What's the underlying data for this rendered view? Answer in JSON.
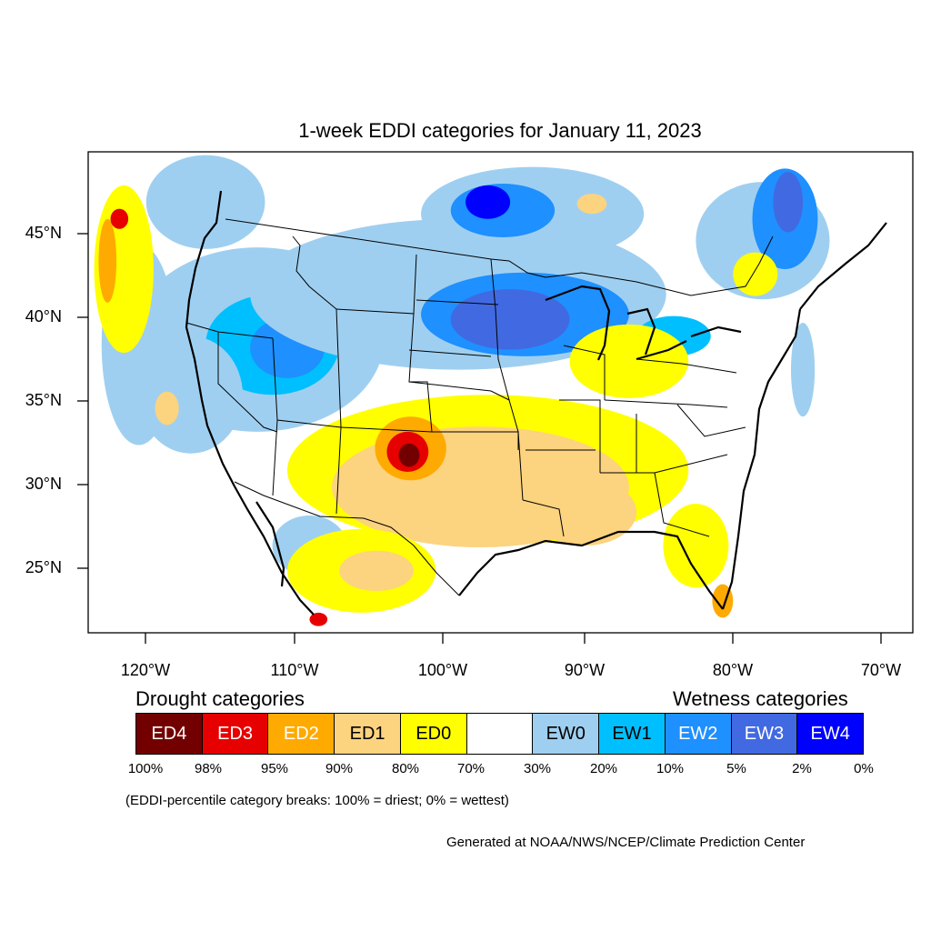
{
  "title": "1-week EDDI categories for January 11, 2023",
  "lat_labels": [
    "45°N",
    "40°N",
    "35°N",
    "30°N",
    "25°N"
  ],
  "lon_labels": [
    "120°W",
    "110°W",
    "100°W",
    "90°W",
    "80°W",
    "70°W"
  ],
  "legend": {
    "drought_heading": "Drought categories",
    "wetness_heading": "Wetness categories",
    "categories": [
      {
        "label": "ED4",
        "color": "#730000",
        "text_color": "#ffffff"
      },
      {
        "label": "ED3",
        "color": "#e60000",
        "text_color": "#ffffff"
      },
      {
        "label": "ED2",
        "color": "#ffaa00",
        "text_color": "#ffffff"
      },
      {
        "label": "ED1",
        "color": "#fcd37f",
        "text_color": "#000000"
      },
      {
        "label": "ED0",
        "color": "#ffff00",
        "text_color": "#000000"
      },
      {
        "label": "",
        "color": "#ffffff",
        "text_color": "#000000"
      },
      {
        "label": "EW0",
        "color": "#9fcff0",
        "text_color": "#000000"
      },
      {
        "label": "EW1",
        "color": "#00bfff",
        "text_color": "#000000"
      },
      {
        "label": "EW2",
        "color": "#1e90ff",
        "text_color": "#ffffff"
      },
      {
        "label": "EW3",
        "color": "#4169e1",
        "text_color": "#ffffff"
      },
      {
        "label": "EW4",
        "color": "#0000ff",
        "text_color": "#ffffff"
      }
    ],
    "breaks": [
      "100%",
      "98%",
      "95%",
      "90%",
      "80%",
      "70%",
      "30%",
      "20%",
      "10%",
      "5%",
      "2%",
      "0%"
    ]
  },
  "note": "(EDDI-percentile category breaks: 100% = driest; 0% = wettest)",
  "credit": "Generated at NOAA/NWS/NCEP/Climate Prediction Center",
  "map": {
    "projection": "lat-lon",
    "lon_range": [
      -123.9,
      -68.4
    ],
    "lat_range": [
      20.8,
      49.5
    ],
    "regions": [
      {
        "category": "EW0",
        "lon": -112.5,
        "lat": 38.3,
        "rx": 8.5,
        "ry": 5.5
      },
      {
        "category": "EW1",
        "lon": -111.5,
        "lat": 38.0,
        "rx": 4.5,
        "ry": 3.0
      },
      {
        "category": "EW2",
        "lon": -110.5,
        "lat": 37.8,
        "rx": 2.5,
        "ry": 1.8
      },
      {
        "category": "EW0",
        "lon": -99.0,
        "lat": 41.0,
        "rx": 14.0,
        "ry": 4.5
      },
      {
        "category": "EW2",
        "lon": -94.5,
        "lat": 39.8,
        "rx": 7.0,
        "ry": 2.5
      },
      {
        "category": "EW3",
        "lon": -95.5,
        "lat": 39.5,
        "rx": 4.0,
        "ry": 1.8
      },
      {
        "category": "EW0",
        "lon": -94.0,
        "lat": 45.8,
        "rx": 7.5,
        "ry": 2.8
      },
      {
        "category": "EW2",
        "lon": -96.0,
        "lat": 46.0,
        "rx": 3.5,
        "ry": 1.6
      },
      {
        "category": "EW4",
        "lon": -97.0,
        "lat": 46.5,
        "rx": 1.5,
        "ry": 1.0
      },
      {
        "category": "EW0",
        "lon": -78.5,
        "lat": 44.2,
        "rx": 4.5,
        "ry": 3.5
      },
      {
        "category": "EW2",
        "lon": -77.0,
        "lat": 45.5,
        "rx": 2.2,
        "ry": 3.0
      },
      {
        "category": "EW3",
        "lon": -76.8,
        "lat": 46.5,
        "rx": 1.0,
        "ry": 1.8
      },
      {
        "category": "EW0",
        "lon": -117.0,
        "lat": 35.0,
        "rx": 3.5,
        "ry": 3.5
      },
      {
        "category": "EW0",
        "lon": -120.5,
        "lat": 38.0,
        "rx": 2.5,
        "ry": 6.0
      },
      {
        "category": "EW0",
        "lon": -116.0,
        "lat": 46.5,
        "rx": 4.0,
        "ry": 2.8
      },
      {
        "category": "EW0",
        "lon": -109.0,
        "lat": 26.0,
        "rx": 2.5,
        "ry": 1.8
      },
      {
        "category": "EW1",
        "lon": -84.5,
        "lat": 38.5,
        "rx": 2.5,
        "ry": 1.2
      },
      {
        "category": "EW0",
        "lon": -75.8,
        "lat": 36.5,
        "rx": 0.8,
        "ry": 2.8
      },
      {
        "category": "ED0",
        "lon": -97.0,
        "lat": 30.5,
        "rx": 13.5,
        "ry": 4.5
      },
      {
        "category": "ED1",
        "lon": -97.5,
        "lat": 29.5,
        "rx": 10.0,
        "ry": 3.6
      },
      {
        "category": "ED1",
        "lon": -90.5,
        "lat": 28.0,
        "rx": 3.5,
        "ry": 2.0
      },
      {
        "category": "ED2",
        "lon": -102.2,
        "lat": 31.8,
        "rx": 2.4,
        "ry": 1.9
      },
      {
        "category": "ED3",
        "lon": -102.4,
        "lat": 31.6,
        "rx": 1.4,
        "ry": 1.2
      },
      {
        "category": "ED4",
        "lon": -102.3,
        "lat": 31.4,
        "rx": 0.7,
        "ry": 0.7
      },
      {
        "category": "ED0",
        "lon": -87.5,
        "lat": 37.0,
        "rx": 4.0,
        "ry": 2.2
      },
      {
        "category": "ED0",
        "lon": -83.0,
        "lat": 26.0,
        "rx": 2.2,
        "ry": 2.5
      },
      {
        "category": "ED2",
        "lon": -81.2,
        "lat": 22.7,
        "rx": 0.7,
        "ry": 1.0
      },
      {
        "category": "ED0",
        "lon": -121.5,
        "lat": 42.5,
        "rx": 2.0,
        "ry": 5.0
      },
      {
        "category": "ED2",
        "lon": -122.6,
        "lat": 43.0,
        "rx": 0.6,
        "ry": 2.5
      },
      {
        "category": "ED3",
        "lon": -121.8,
        "lat": 45.5,
        "rx": 0.6,
        "ry": 0.6
      },
      {
        "category": "ED0",
        "lon": -105.5,
        "lat": 24.5,
        "rx": 5.0,
        "ry": 2.5
      },
      {
        "category": "ED1",
        "lon": -104.5,
        "lat": 24.5,
        "rx": 2.5,
        "ry": 1.2
      },
      {
        "category": "ED3",
        "lon": -108.4,
        "lat": 21.6,
        "rx": 0.6,
        "ry": 0.4
      },
      {
        "category": "ED1",
        "lon": -118.6,
        "lat": 34.2,
        "rx": 0.8,
        "ry": 1.0
      },
      {
        "category": "ED0",
        "lon": -79.0,
        "lat": 42.2,
        "rx": 1.5,
        "ry": 1.3
      },
      {
        "category": "ED1",
        "lon": -90.0,
        "lat": 46.4,
        "rx": 1.0,
        "ry": 0.6
      }
    ]
  }
}
